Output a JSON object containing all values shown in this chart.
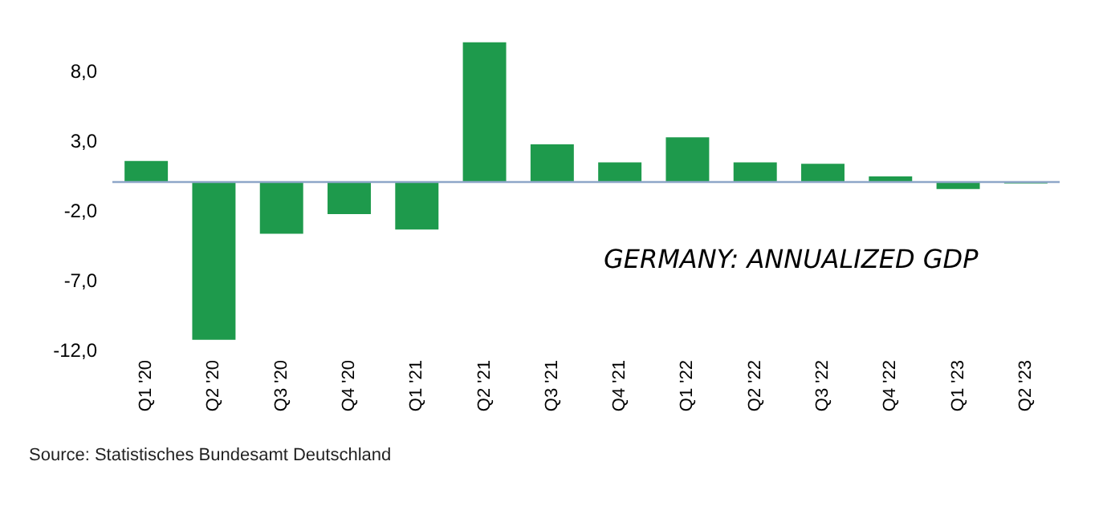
{
  "chart_data": {
    "type": "bar",
    "title": "GERMANY: ANNUALIZED GDP",
    "categories": [
      "Q1 '20",
      "Q2 '20",
      "Q3 '20",
      "Q4 '20",
      "Q1 '21",
      "Q2 '21",
      "Q3 '21",
      "Q4 '21",
      "Q1 '22",
      "Q2 '22",
      "Q3 '22",
      "Q4 '22",
      "Q1 '23",
      "Q2 '23"
    ],
    "values": [
      1.5,
      -11.3,
      -3.7,
      -2.3,
      -3.4,
      10.0,
      2.7,
      1.4,
      3.2,
      1.4,
      1.3,
      0.4,
      -0.5,
      -0.1
    ],
    "color": "#1e9a4c",
    "ylim": [
      -12,
      10.5
    ],
    "yticks": [
      {
        "value": -12,
        "label": "-12,0"
      },
      {
        "value": -7,
        "label": "-7,0"
      },
      {
        "value": -2,
        "label": "-2,0"
      },
      {
        "value": 3,
        "label": "3,0"
      },
      {
        "value": 8,
        "label": "8,0"
      }
    ],
    "grid": false,
    "ref_lines": [
      {
        "axis": "y",
        "value": 0,
        "color": "#8ea6c8"
      }
    ],
    "annotations": [
      "Source: Statistisches Bundesamt Deutschland"
    ]
  }
}
